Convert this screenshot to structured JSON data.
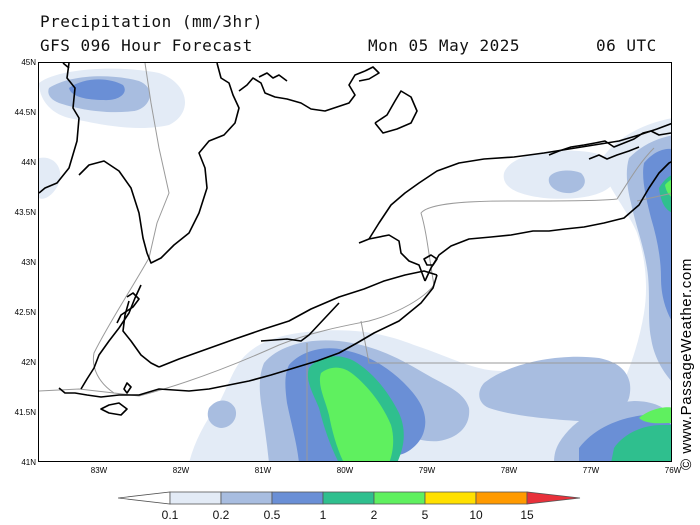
{
  "header": {
    "title": "Precipitation (mm/3hr)",
    "subtitle": "GFS 096 Hour Forecast",
    "date": "Mon 05 May 2025",
    "time": "06 UTC"
  },
  "map": {
    "latitude_labels": [
      "45N",
      "44.5N",
      "44N",
      "43.5N",
      "43N",
      "42.5N",
      "42N",
      "41.5N",
      "41N"
    ],
    "longitude_labels": [
      "83W",
      "82W",
      "81W",
      "80W",
      "79W",
      "78W",
      "77W",
      "76W"
    ],
    "lat_range": [
      41,
      45
    ],
    "lon_range": [
      -83.75,
      -76
    ],
    "region_features": [
      "Lake Huron",
      "Lake Erie",
      "Lake Ontario"
    ]
  },
  "legend": {
    "labels": [
      "0.1",
      "0.2",
      "0.5",
      "1",
      "2",
      "5",
      "10",
      "15"
    ],
    "colors": [
      "#ffffff",
      "#e3ebf6",
      "#a8bde0",
      "#6a8fd6",
      "#2fbf8e",
      "#5ff05f",
      "#ffe000",
      "#ff9a00",
      "#e8303a"
    ]
  },
  "watermark": "© www.PassageWeather.com"
}
